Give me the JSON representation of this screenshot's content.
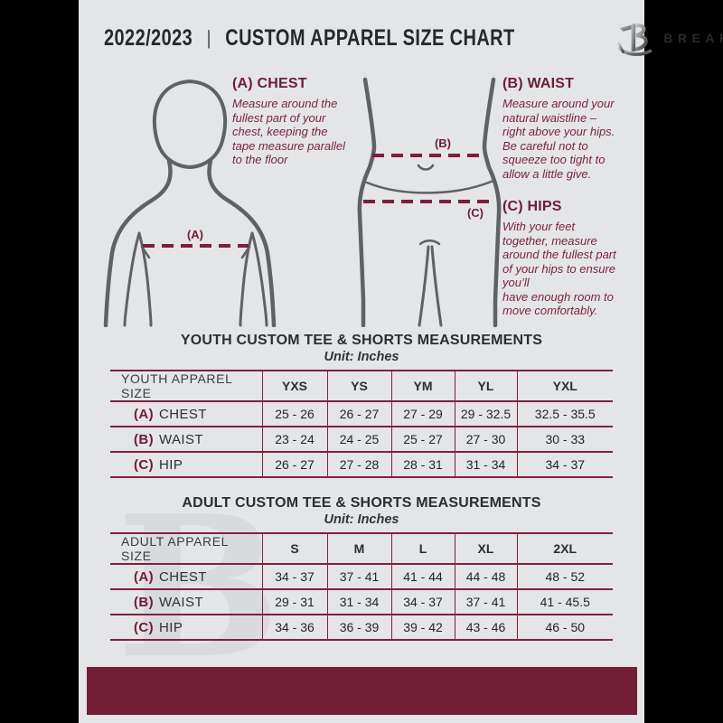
{
  "header": {
    "season": "2022/2023",
    "separator": "|",
    "title": "CUSTOM APPAREL SIZE CHART",
    "brand": "BREAKAWAY",
    "logo_icon": "breakaway-b-logo"
  },
  "instructions": [
    {
      "heading": "(A) CHEST",
      "body": "Measure around the\nfullest part of your\nchest, keeping the\ntape measure parallel\nto the floor"
    },
    {
      "heading": "(B) WAIST",
      "body": "Measure around your\nnatural waistline –\nright above your hips.\nBe careful not to\nsqueeze too tight to\nallow a little give."
    },
    {
      "heading": "(C) HIPS",
      "body": "With your feet\ntogether, measure\naround the fullest part\nof your hips to ensure\nyou’ll\nhave enough room to\nmove comfortably."
    }
  ],
  "figure_labels": {
    "chest": "(A)",
    "waist": "(B)",
    "hips": "(C)"
  },
  "tables": [
    {
      "title": "YOUTH CUSTOM TEE & SHORTS MEASUREMENTS",
      "unit": "Unit: Inches",
      "columns": [
        "YOUTH APPAREL SIZE",
        "YXS",
        "YS",
        "YM",
        "YL",
        "YXL"
      ],
      "rows": [
        {
          "prefix": "(A)",
          "label": "CHEST",
          "values": [
            "25 - 26",
            "26 - 27",
            "27 - 29",
            "29 - 32.5",
            "32.5 - 35.5"
          ]
        },
        {
          "prefix": "(B)",
          "label": "WAIST",
          "values": [
            "23 - 24",
            "24 - 25",
            "25 - 27",
            "27 - 30",
            "30 - 33"
          ]
        },
        {
          "prefix": "(C)",
          "label": "HIP",
          "values": [
            "26 - 27",
            "27 - 28",
            "28 - 31",
            "31 - 34",
            "34 - 37"
          ]
        }
      ]
    },
    {
      "title": "ADULT CUSTOM TEE & SHORTS MEASUREMENTS",
      "unit": "Unit: Inches",
      "columns": [
        "ADULT APPAREL SIZE",
        "S",
        "M",
        "L",
        "XL",
        "2XL"
      ],
      "rows": [
        {
          "prefix": "(A)",
          "label": "CHEST",
          "values": [
            "34 - 37",
            "37 - 41",
            "41 - 44",
            "44 - 48",
            "48 - 52"
          ]
        },
        {
          "prefix": "(B)",
          "label": "WAIST",
          "values": [
            "29 - 31",
            "31 - 34",
            "34 - 37",
            "37 - 41",
            "41 - 45.5"
          ]
        },
        {
          "prefix": "(C)",
          "label": "HIP",
          "values": [
            "34 - 36",
            "36 - 39",
            "39 - 42",
            "43 - 46",
            "46 - 50"
          ]
        }
      ]
    }
  ],
  "watermark": "B",
  "colors": {
    "maroon": "#731d37",
    "table_border": "#7f2040",
    "heading_maroon": "#6e1c38",
    "body_maroon": "#7a2440",
    "dash_red": "#7c1f3c",
    "page_bg": "#e4e5e7",
    "text_dark": "#2c2e30",
    "figure_gray": "#5f6164",
    "watermark": "#d9dadc"
  }
}
